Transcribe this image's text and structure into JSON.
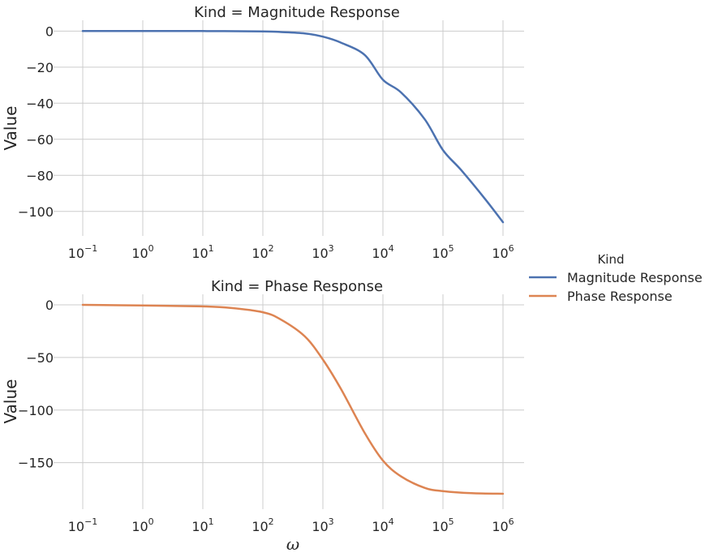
{
  "chart_data": [
    {
      "type": "line",
      "title": "Kind = Magnitude Response",
      "xlabel": "",
      "ylabel": "Value",
      "xscale": "log",
      "xlim_exp": [
        -1,
        6
      ],
      "ylim": [
        -110,
        6
      ],
      "yticks": [
        0,
        -20,
        -40,
        -60,
        -80,
        -100
      ],
      "ytick_labels": [
        "0",
        "−20",
        "−40",
        "−60",
        "−80",
        "−100"
      ],
      "xtick_labels": [
        {
          "base": "10",
          "exp": "−1"
        },
        {
          "base": "10",
          "exp": "0"
        },
        {
          "base": "10",
          "exp": "1"
        },
        {
          "base": "10",
          "exp": "2"
        },
        {
          "base": "10",
          "exp": "3"
        },
        {
          "base": "10",
          "exp": "4"
        },
        {
          "base": "10",
          "exp": "5"
        },
        {
          "base": "10",
          "exp": "6"
        }
      ],
      "grid": true,
      "series": [
        {
          "name": "Magnitude Response",
          "color": "#4c72b0",
          "x": [
            0.1,
            1,
            10,
            100,
            200,
            500,
            1000,
            2000,
            5000,
            10000,
            20000,
            50000,
            100000,
            200000,
            500000,
            1000000
          ],
          "y": [
            0,
            0,
            0,
            -0.2,
            -0.5,
            -1.3,
            -3.1,
            -6.4,
            -13.3,
            -27,
            -34,
            -49,
            -66,
            -77,
            -93,
            -106
          ]
        }
      ]
    },
    {
      "type": "line",
      "title": "Kind = Phase Response",
      "xlabel": "ω",
      "ylabel": "Value",
      "xscale": "log",
      "xlim_exp": [
        -1,
        6
      ],
      "ylim": [
        -188,
        10
      ],
      "yticks": [
        0,
        -50,
        -100,
        -150
      ],
      "ytick_labels": [
        "0",
        "−50",
        "−100",
        "−150"
      ],
      "xtick_labels": [
        {
          "base": "10",
          "exp": "−1"
        },
        {
          "base": "10",
          "exp": "0"
        },
        {
          "base": "10",
          "exp": "1"
        },
        {
          "base": "10",
          "exp": "2"
        },
        {
          "base": "10",
          "exp": "3"
        },
        {
          "base": "10",
          "exp": "4"
        },
        {
          "base": "10",
          "exp": "5"
        },
        {
          "base": "10",
          "exp": "6"
        }
      ],
      "grid": true,
      "series": [
        {
          "name": "Phase Response",
          "color": "#dd8452",
          "x": [
            0.1,
            1,
            10,
            30,
            100,
            200,
            500,
            1000,
            2000,
            5000,
            10000,
            20000,
            50000,
            100000,
            300000,
            1000000
          ],
          "y": [
            0,
            -0.6,
            -1.5,
            -3,
            -7,
            -14,
            -30,
            -52,
            -80,
            -122,
            -148,
            -163,
            -174,
            -177,
            -179,
            -179.5
          ]
        }
      ]
    }
  ],
  "legend": {
    "title": "Kind",
    "placement": "right",
    "items": [
      {
        "label": "Magnitude Response",
        "color": "#4c72b0"
      },
      {
        "label": "Phase Response",
        "color": "#dd8452"
      }
    ]
  }
}
